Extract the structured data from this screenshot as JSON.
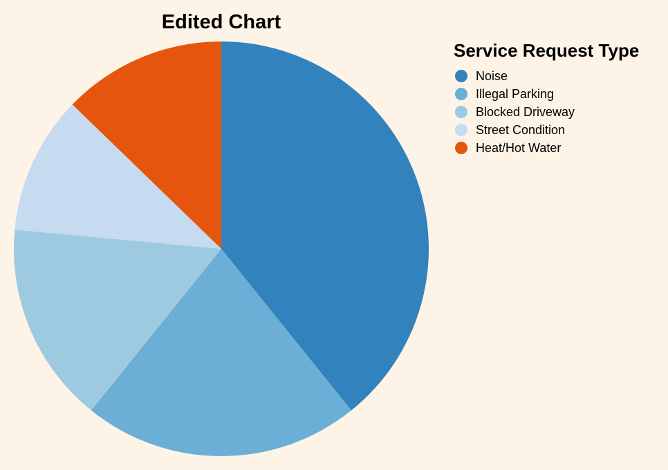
{
  "chart_data": {
    "type": "pie",
    "title": "Edited Chart",
    "legend_title": "Service Request Type",
    "legend_position": "right",
    "categories": [
      "Noise",
      "Illegal Parking",
      "Blocked Driveway",
      "Street Condition",
      "Heat/Hot Water"
    ],
    "values": [
      40,
      22,
      16,
      11,
      13
    ],
    "colors": [
      "#3182bd",
      "#6baed6",
      "#9ecae1",
      "#c6dbef",
      "#e6550d"
    ]
  },
  "background": "#fdf3e6"
}
